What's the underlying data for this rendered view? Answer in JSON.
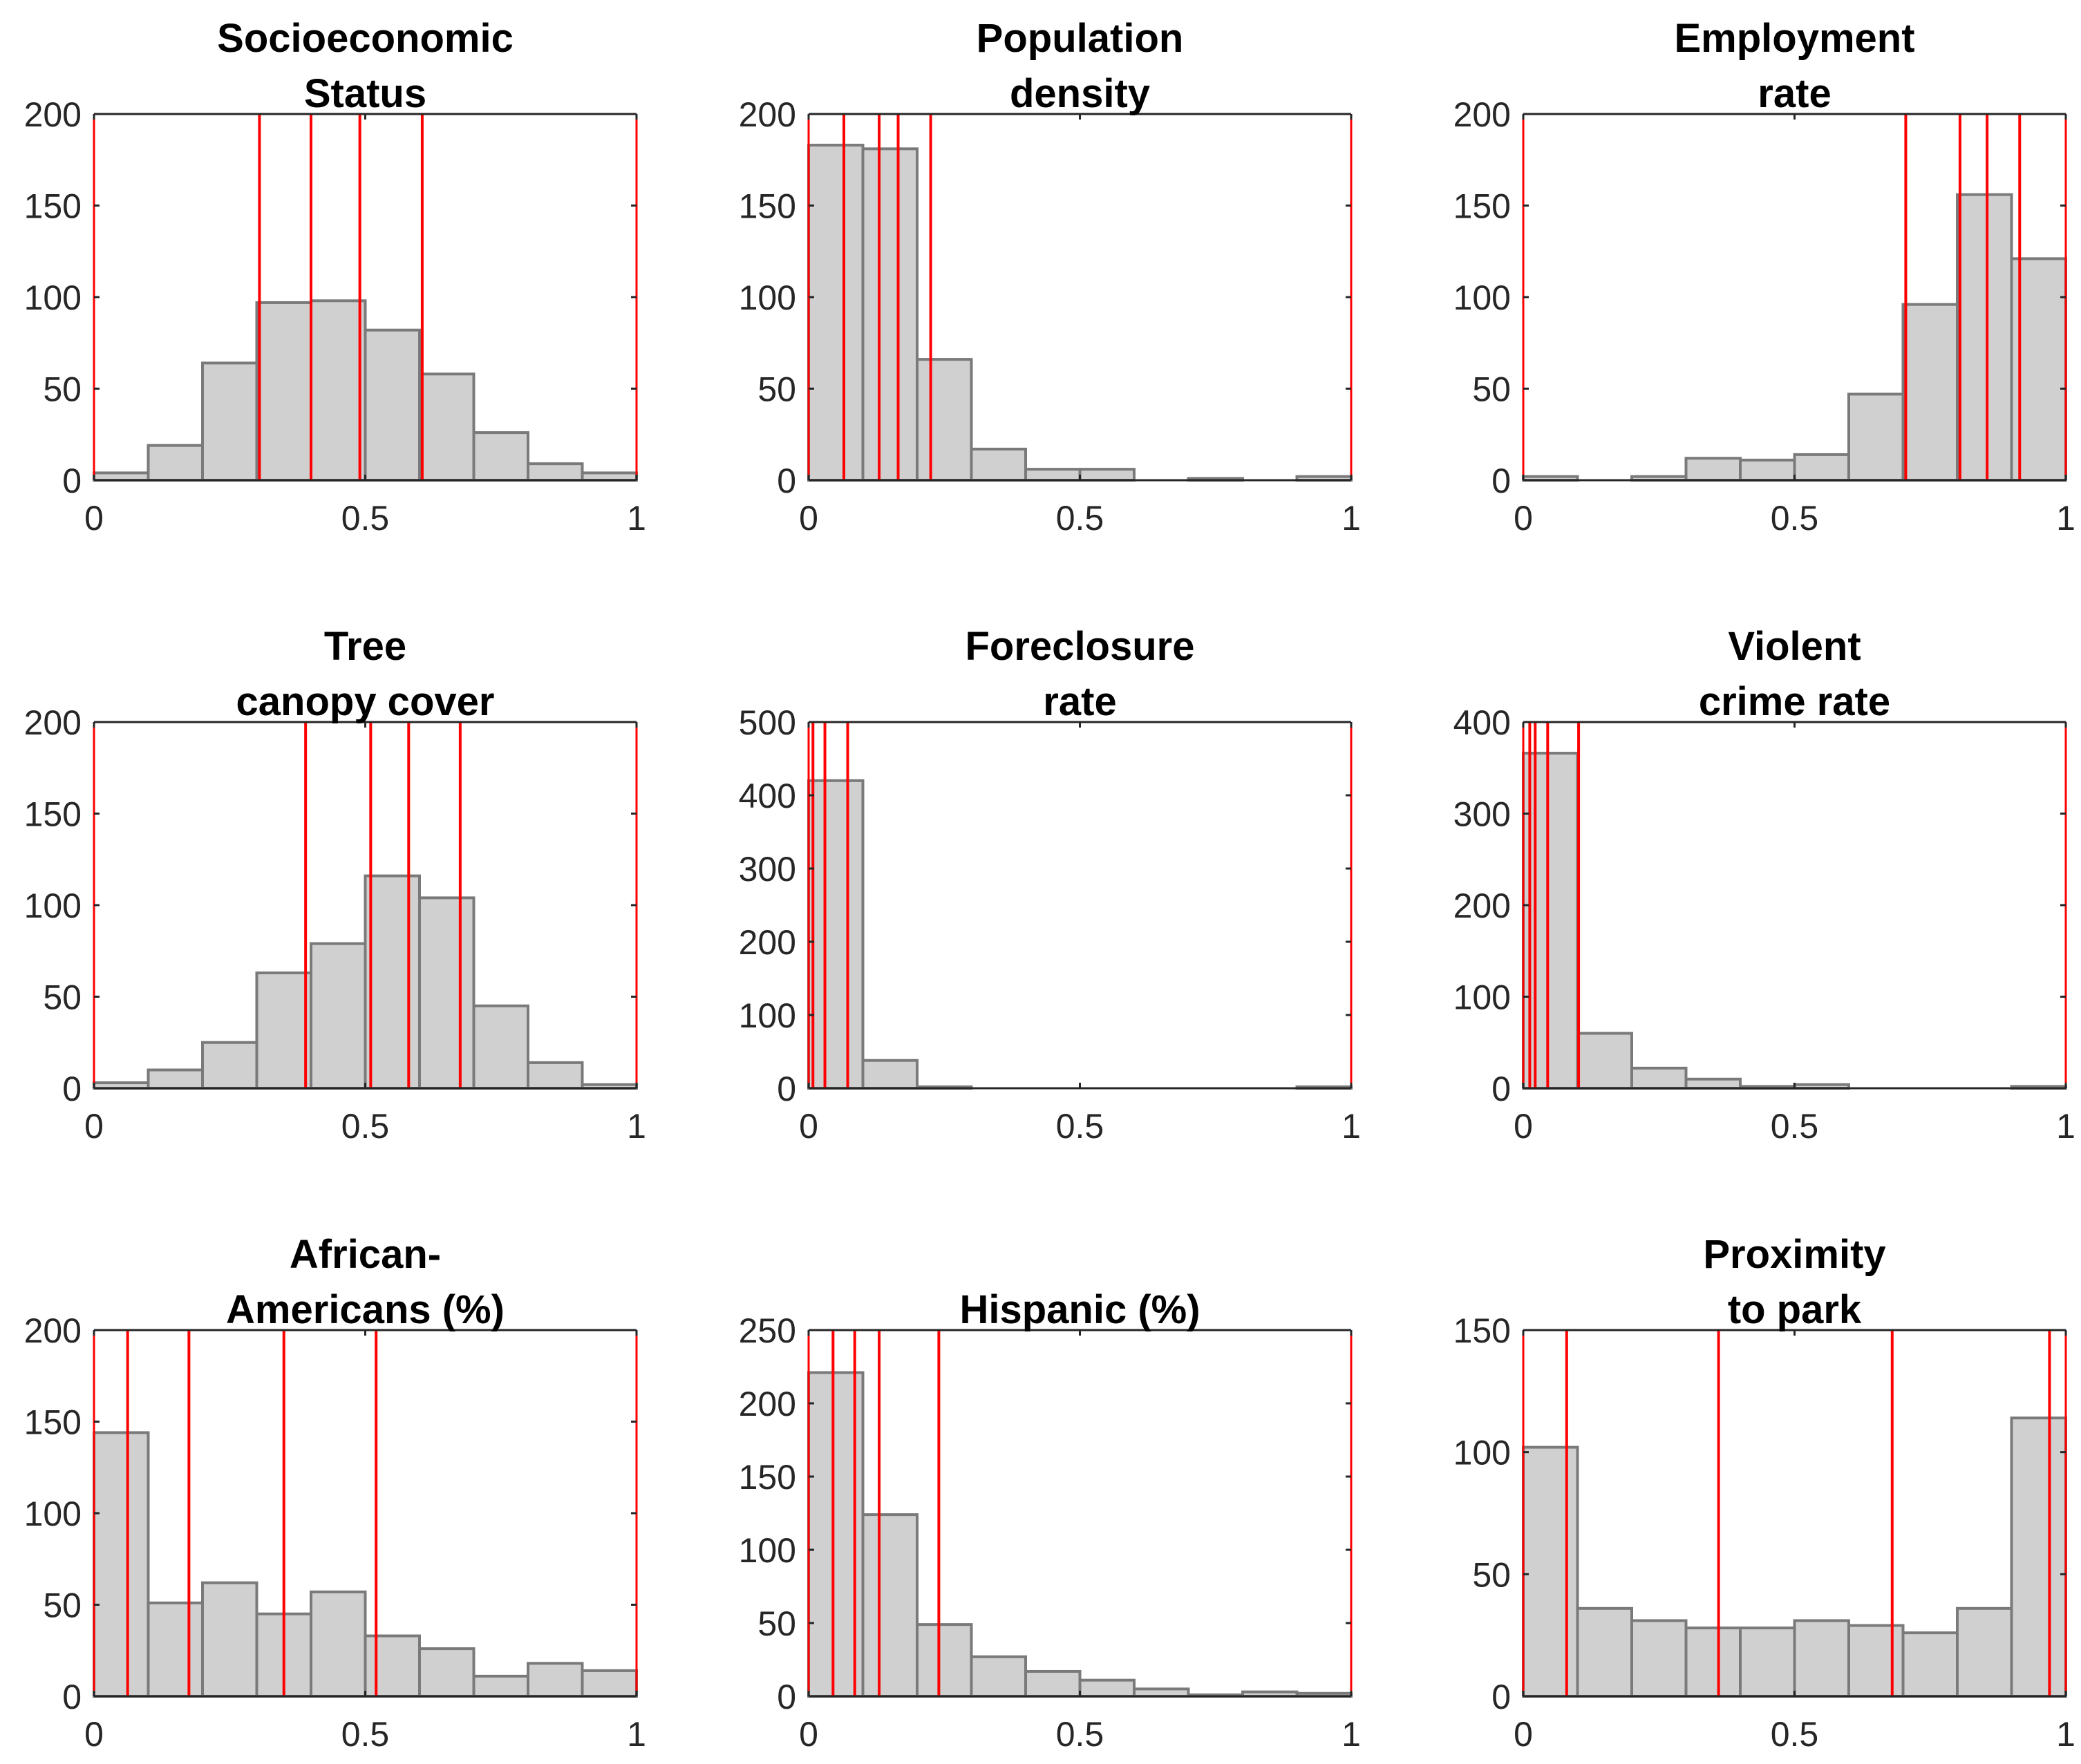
{
  "figure": {
    "background": "#ffffff",
    "bar_fill": "#d0d0d0",
    "bar_stroke": "#7a7a7a",
    "marker_color": "#ff0000",
    "axis_color": "#262626"
  },
  "chart_data": [
    {
      "type": "bar",
      "title_lines": [
        "Socioeconomic",
        "Status"
      ],
      "bin_edges": [
        0,
        0.1,
        0.2,
        0.3,
        0.4,
        0.5,
        0.6,
        0.7,
        0.8,
        0.9,
        1.0
      ],
      "counts": [
        4,
        19,
        64,
        97,
        98,
        82,
        58,
        26,
        9,
        4
      ],
      "markers": [
        0.305,
        0.4,
        0.49,
        0.605
      ],
      "xlim": [
        0,
        1
      ],
      "ylim": [
        0,
        200
      ],
      "xticks": [
        0,
        0.5,
        1
      ],
      "xtick_labels": [
        "0",
        "0.5",
        "1"
      ],
      "yticks": [
        0,
        50,
        100,
        150,
        200
      ],
      "ytick_labels": [
        "0",
        "50",
        "100",
        "150",
        "200"
      ]
    },
    {
      "type": "bar",
      "title_lines": [
        "Population",
        "density"
      ],
      "bin_edges": [
        0,
        0.1,
        0.2,
        0.3,
        0.4,
        0.5,
        0.6,
        0.7,
        0.8,
        0.9,
        1.0
      ],
      "counts": [
        183,
        181,
        66,
        17,
        6,
        6,
        0,
        1,
        0,
        2
      ],
      "markers": [
        0.065,
        0.13,
        0.165,
        0.225
      ],
      "xlim": [
        0,
        1
      ],
      "ylim": [
        0,
        200
      ],
      "xticks": [
        0,
        0.5,
        1
      ],
      "xtick_labels": [
        "0",
        "0.5",
        "1"
      ],
      "yticks": [
        0,
        50,
        100,
        150,
        200
      ],
      "ytick_labels": [
        "0",
        "50",
        "100",
        "150",
        "200"
      ]
    },
    {
      "type": "bar",
      "title_lines": [
        "Employment",
        "rate"
      ],
      "bin_edges": [
        0,
        0.1,
        0.2,
        0.3,
        0.4,
        0.5,
        0.6,
        0.7,
        0.8,
        0.9,
        1.0
      ],
      "counts": [
        2,
        0,
        2,
        12,
        11,
        14,
        47,
        96,
        156,
        121
      ],
      "markers": [
        0.705,
        0.805,
        0.855,
        0.915
      ],
      "xlim": [
        0,
        1
      ],
      "ylim": [
        0,
        200
      ],
      "xticks": [
        0,
        0.5,
        1
      ],
      "xtick_labels": [
        "0",
        "0.5",
        "1"
      ],
      "yticks": [
        0,
        50,
        100,
        150,
        200
      ],
      "ytick_labels": [
        "0",
        "50",
        "100",
        "150",
        "200"
      ]
    },
    {
      "type": "bar",
      "title_lines": [
        "Tree",
        "canopy cover"
      ],
      "bin_edges": [
        0,
        0.1,
        0.2,
        0.3,
        0.4,
        0.5,
        0.6,
        0.7,
        0.8,
        0.9,
        1.0
      ],
      "counts": [
        3,
        10,
        25,
        63,
        79,
        116,
        104,
        45,
        14,
        2
      ],
      "markers": [
        0.39,
        0.51,
        0.58,
        0.675
      ],
      "xlim": [
        0,
        1
      ],
      "ylim": [
        0,
        200
      ],
      "xticks": [
        0,
        0.5,
        1
      ],
      "xtick_labels": [
        "0",
        "0.5",
        "1"
      ],
      "yticks": [
        0,
        50,
        100,
        150,
        200
      ],
      "ytick_labels": [
        "0",
        "50",
        "100",
        "150",
        "200"
      ]
    },
    {
      "type": "bar",
      "title_lines": [
        "Foreclosure",
        "rate"
      ],
      "bin_edges": [
        0,
        0.1,
        0.2,
        0.3,
        0.4,
        0.5,
        0.6,
        0.7,
        0.8,
        0.9,
        1.0
      ],
      "counts": [
        420,
        38,
        2,
        0,
        0,
        0,
        0,
        0,
        0,
        2
      ],
      "markers": [
        0.008,
        0.03,
        0.072
      ],
      "xlim": [
        0,
        1
      ],
      "ylim": [
        0,
        500
      ],
      "xticks": [
        0,
        0.5,
        1
      ],
      "xtick_labels": [
        "0",
        "0.5",
        "1"
      ],
      "yticks": [
        0,
        100,
        200,
        300,
        400,
        500
      ],
      "ytick_labels": [
        "0",
        "100",
        "200",
        "300",
        "400",
        "500"
      ]
    },
    {
      "type": "bar",
      "title_lines": [
        "Violent",
        "crime rate"
      ],
      "bin_edges": [
        0,
        0.1,
        0.2,
        0.3,
        0.4,
        0.5,
        0.6,
        0.7,
        0.8,
        0.9,
        1.0
      ],
      "counts": [
        366,
        60,
        22,
        10,
        2,
        4,
        0,
        0,
        0,
        2
      ],
      "markers": [
        0.012,
        0.022,
        0.045,
        0.102
      ],
      "xlim": [
        0,
        1
      ],
      "ylim": [
        0,
        400
      ],
      "xticks": [
        0,
        0.5,
        1
      ],
      "xtick_labels": [
        "0",
        "0.5",
        "1"
      ],
      "yticks": [
        0,
        100,
        200,
        300,
        400
      ],
      "ytick_labels": [
        "0",
        "100",
        "200",
        "300",
        "400"
      ]
    },
    {
      "type": "bar",
      "title_lines": [
        "African-",
        "Americans (%)"
      ],
      "bin_edges": [
        0,
        0.1,
        0.2,
        0.3,
        0.4,
        0.5,
        0.6,
        0.7,
        0.8,
        0.9,
        1.0
      ],
      "counts": [
        144,
        51,
        62,
        45,
        57,
        33,
        26,
        11,
        18,
        14
      ],
      "markers": [
        0.062,
        0.175,
        0.35,
        0.52
      ],
      "xlim": [
        0,
        1
      ],
      "ylim": [
        0,
        200
      ],
      "xticks": [
        0,
        0.5,
        1
      ],
      "xtick_labels": [
        "0",
        "0.5",
        "1"
      ],
      "yticks": [
        0,
        50,
        100,
        150,
        200
      ],
      "ytick_labels": [
        "0",
        "50",
        "100",
        "150",
        "200"
      ]
    },
    {
      "type": "bar",
      "title_lines": [
        "Hispanic (%)"
      ],
      "bin_edges": [
        0,
        0.1,
        0.2,
        0.3,
        0.4,
        0.5,
        0.6,
        0.7,
        0.8,
        0.9,
        1.0
      ],
      "counts": [
        221,
        124,
        49,
        27,
        17,
        11,
        5,
        1,
        3,
        2
      ],
      "markers": [
        0.045,
        0.085,
        0.13,
        0.24
      ],
      "xlim": [
        0,
        1
      ],
      "ylim": [
        0,
        250
      ],
      "xticks": [
        0,
        0.5,
        1
      ],
      "xtick_labels": [
        "0",
        "0.5",
        "1"
      ],
      "yticks": [
        0,
        50,
        100,
        150,
        200,
        250
      ],
      "ytick_labels": [
        "0",
        "50",
        "100",
        "150",
        "200",
        "250"
      ]
    },
    {
      "type": "bar",
      "title_lines": [
        "Proximity",
        "to park"
      ],
      "bin_edges": [
        0,
        0.1,
        0.2,
        0.3,
        0.4,
        0.5,
        0.6,
        0.7,
        0.8,
        0.9,
        1.0
      ],
      "counts": [
        102,
        36,
        31,
        28,
        28,
        31,
        29,
        26,
        36,
        114
      ],
      "markers": [
        0.08,
        0.36,
        0.68,
        0.97
      ],
      "xlim": [
        0,
        1
      ],
      "ylim": [
        0,
        150
      ],
      "xticks": [
        0,
        0.5,
        1
      ],
      "xtick_labels": [
        "0",
        "0.5",
        "1"
      ],
      "yticks": [
        0,
        50,
        100,
        150
      ],
      "ytick_labels": [
        "0",
        "50",
        "100",
        "150"
      ]
    }
  ]
}
